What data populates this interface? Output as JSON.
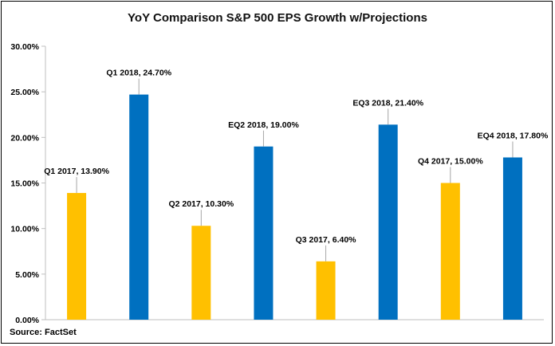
{
  "chart_data": {
    "type": "bar",
    "title": "YoY Comparison S&P 500 EPS Growth w/Projections",
    "source": "Source: FactSet",
    "categories": [
      "Q1 2017",
      "Q1 2018",
      "Q2 2017",
      "EQ2 2018",
      "Q3 2017",
      "EQ3 2018",
      "Q4 2017",
      "EQ4 2018"
    ],
    "values": [
      13.9,
      24.7,
      10.3,
      19.0,
      6.4,
      21.4,
      15.0,
      17.8
    ],
    "data_labels": [
      "Q1 2017, 13.90%",
      "Q1 2018, 24.70%",
      "Q2 2017, 10.30%",
      "EQ2 2018, 19.00%",
      "Q3 2017, 6.40%",
      "EQ3 2018, 21.40%",
      "Q4 2017, 15.00%",
      "EQ4 2018, 17.80%"
    ],
    "bar_colors": [
      "#FFC000",
      "#0070C0",
      "#FFC000",
      "#0070C0",
      "#FFC000",
      "#0070C0",
      "#FFC000",
      "#0070C0"
    ],
    "ylim": [
      0,
      30
    ],
    "yticks": [
      0,
      5,
      10,
      15,
      20,
      25,
      30
    ],
    "ytick_labels": [
      "0.00%",
      "5.00%",
      "10.00%",
      "15.00%",
      "20.00%",
      "25.00%",
      "30.00%"
    ],
    "xlabel": "",
    "ylabel": "",
    "grid": false,
    "legend": "none"
  }
}
